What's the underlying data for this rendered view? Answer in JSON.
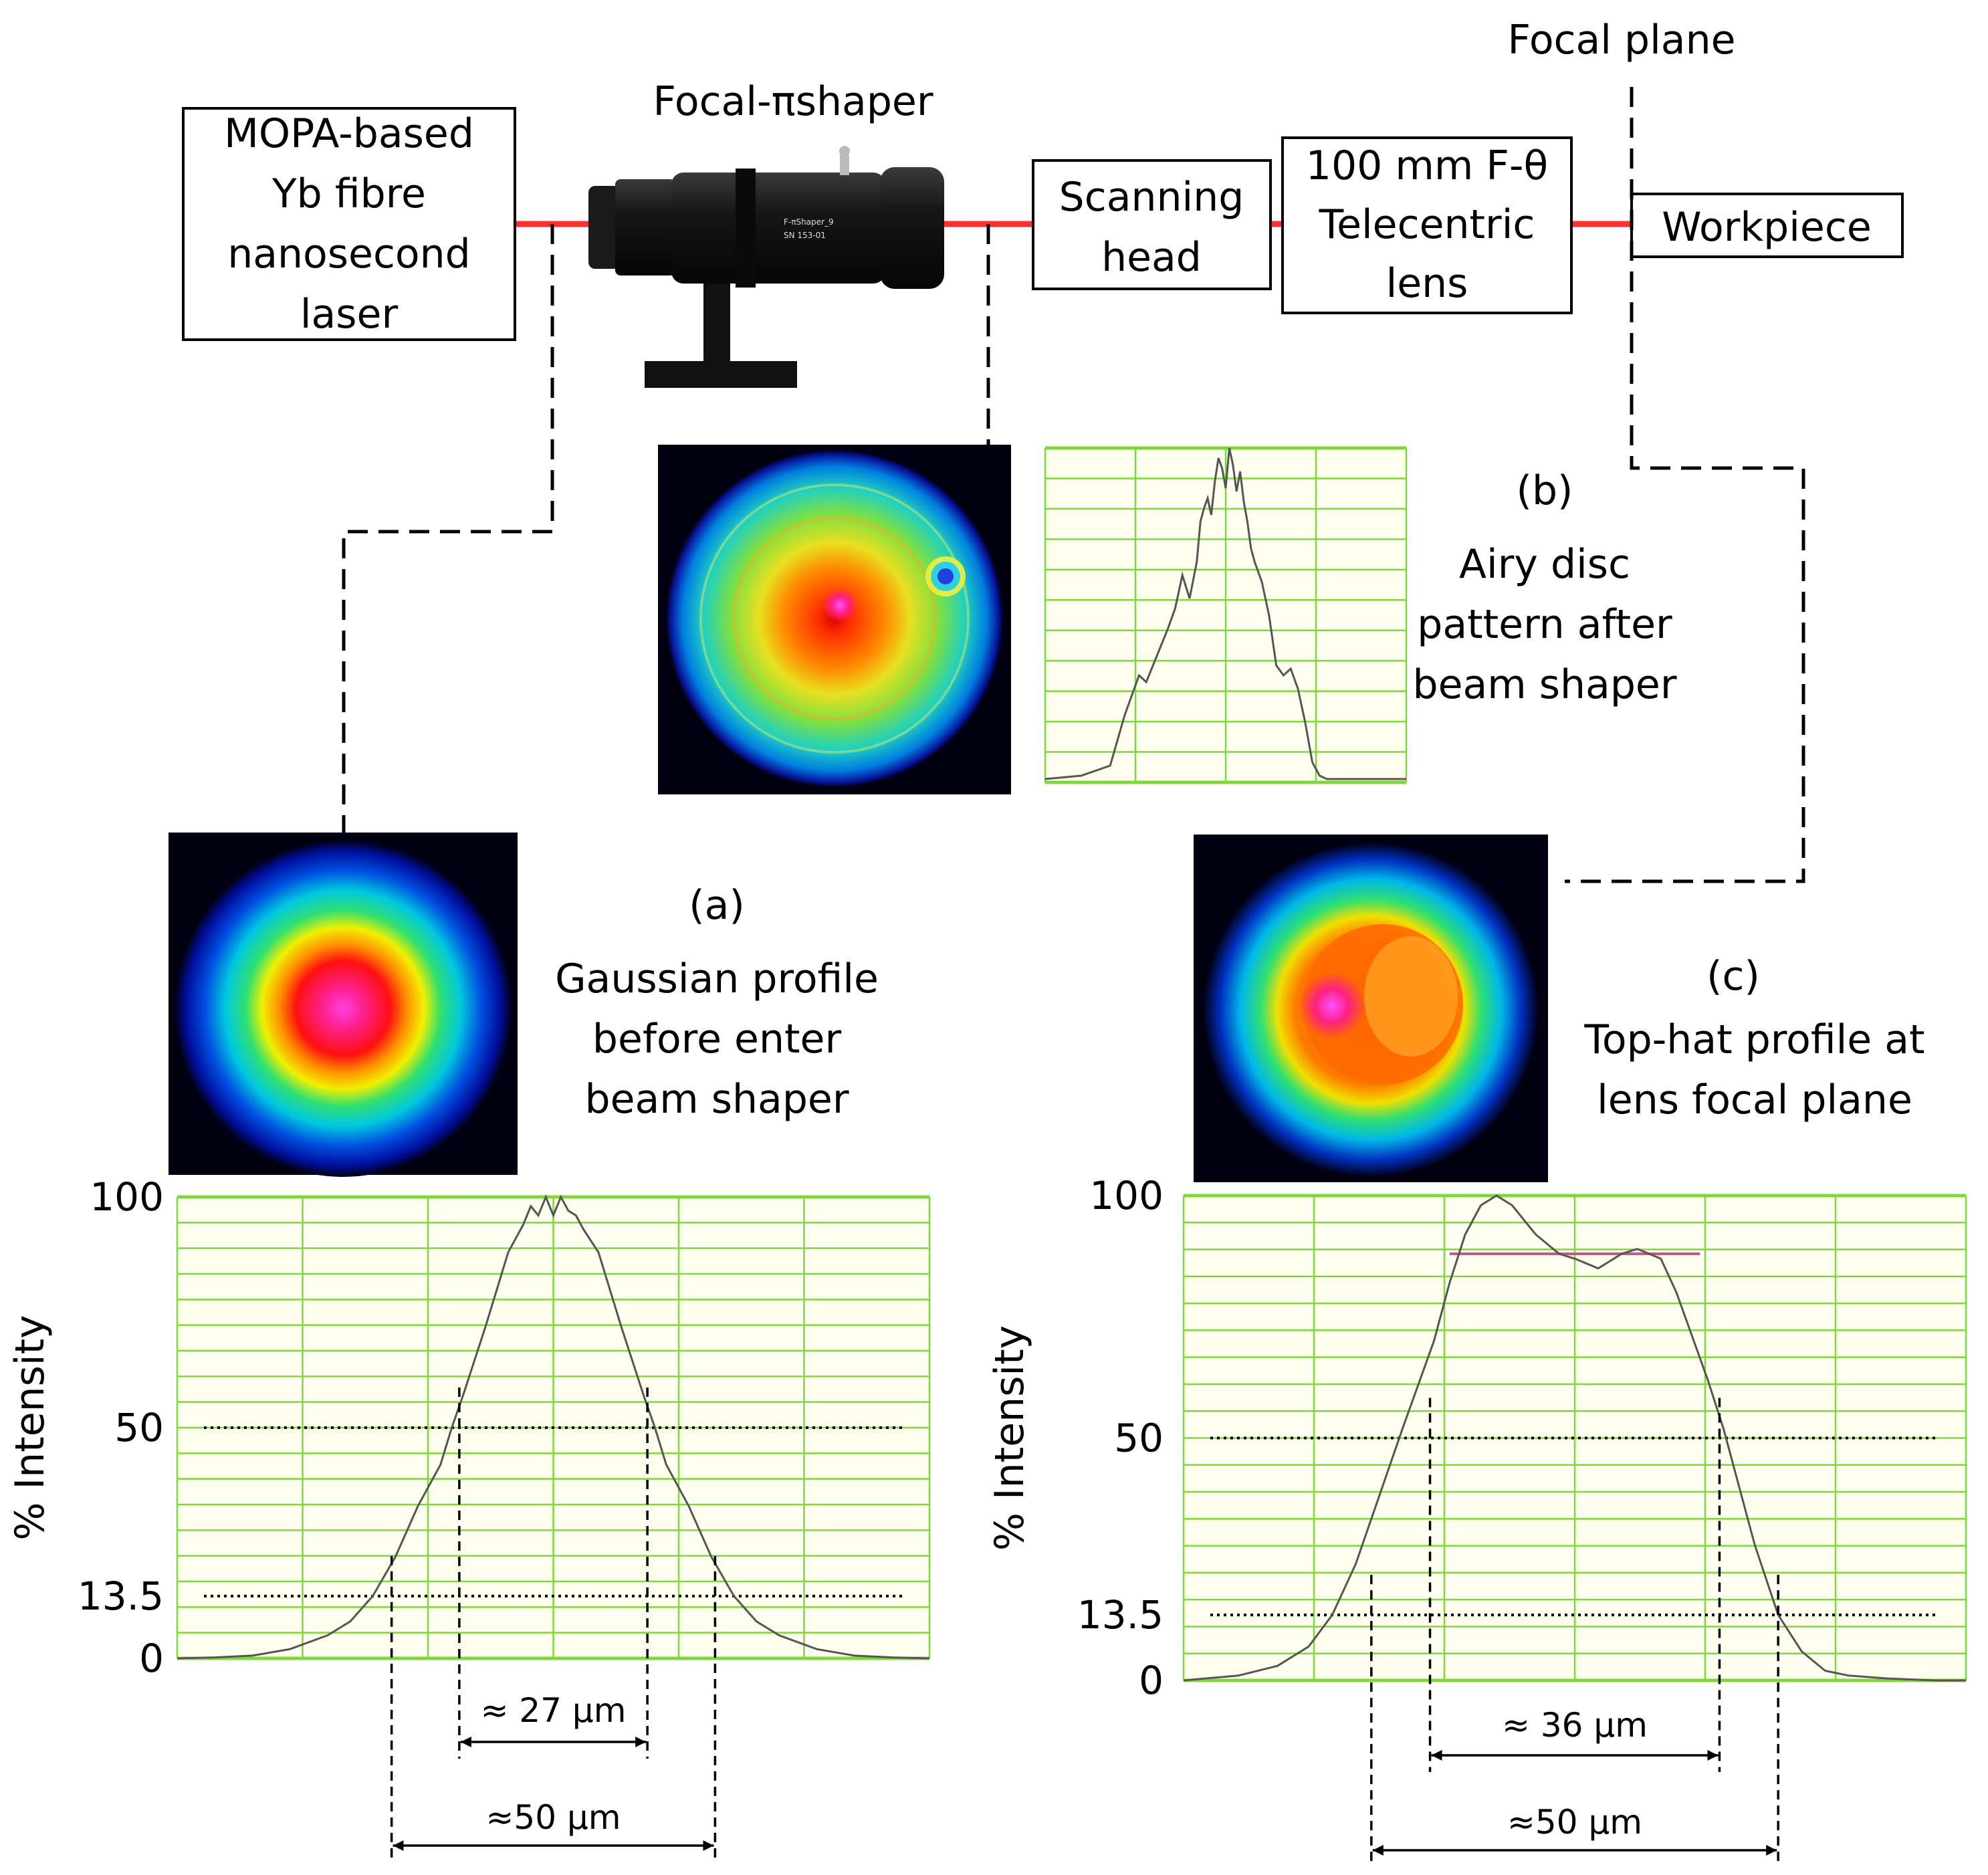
{
  "components": {
    "laser": [
      "MOPA-based",
      "Yb fibre",
      "nanosecond",
      "laser"
    ],
    "shaper_label": "Focal-πshaper",
    "shaper_body_text": [
      "F-πShaper_9",
      "SN 153-01"
    ],
    "scanning_head": [
      "Scanning",
      "head"
    ],
    "lens": [
      "100 mm F-θ",
      "Telecentric",
      "lens"
    ],
    "workpiece": "Workpiece",
    "focal_plane": "Focal plane"
  },
  "panels": {
    "a": {
      "tag": "(a)",
      "caption": [
        "Gaussian profile",
        "before enter",
        "beam shaper"
      ]
    },
    "b": {
      "tag": "(b)",
      "caption": [
        "Airy disc",
        "pattern after",
        "beam shaper"
      ]
    },
    "c": {
      "tag": "(c)",
      "caption": [
        "Top-hat profile at",
        "lens focal plane"
      ]
    }
  },
  "colors": {
    "beam": "#ff3030",
    "grid": "#7fd83a",
    "plot_bg": "#fffff0",
    "curve": "#555555",
    "tophat_marker": "#c8568a"
  },
  "chart_data": [
    {
      "id": "b",
      "type": "line",
      "xlim": [
        0,
        100
      ],
      "ylim": [
        0,
        100
      ],
      "grid": true,
      "series": [
        {
          "x": [
            0,
            10,
            18,
            22,
            26,
            28,
            31,
            34,
            36,
            38,
            40,
            42,
            43,
            44,
            45,
            46,
            47,
            48,
            49,
            50,
            51,
            52,
            53,
            54,
            55,
            56,
            57,
            58,
            60,
            62,
            64,
            66,
            68,
            70,
            72,
            74,
            76,
            78,
            80,
            84,
            90,
            100
          ],
          "y": [
            1,
            2,
            5,
            20,
            32,
            30,
            38,
            46,
            52,
            62,
            55,
            66,
            78,
            82,
            85,
            80,
            90,
            97,
            94,
            88,
            100,
            95,
            87,
            93,
            84,
            78,
            70,
            66,
            60,
            50,
            35,
            32,
            34,
            28,
            18,
            6,
            2,
            1,
            1,
            1,
            1,
            1
          ]
        }
      ]
    },
    {
      "id": "a",
      "type": "line",
      "yticks": [
        "100",
        "50",
        "13.5",
        "0"
      ],
      "ylabel": "% Intensity",
      "xlim": [
        -50,
        50
      ],
      "ylim": [
        0,
        100
      ],
      "grid": true,
      "series": [
        {
          "x": [
            -50,
            -45,
            -40,
            -35,
            -30,
            -27,
            -24,
            -21,
            -18,
            -15,
            -13.5,
            -12,
            -9,
            -6,
            -4,
            -3,
            -2,
            -1,
            0,
            1,
            2,
            3,
            4,
            6,
            9,
            12,
            13.5,
            15,
            18,
            21,
            24,
            27,
            30,
            35,
            40,
            45,
            50
          ],
          "y": [
            0,
            0.2,
            0.6,
            2,
            5,
            8,
            13.5,
            22,
            33,
            42,
            50,
            57,
            72,
            88,
            94,
            98,
            96,
            100,
            96,
            100,
            97,
            96,
            93,
            88,
            72,
            57,
            50,
            42,
            33,
            22,
            13.5,
            8,
            5,
            2,
            0.6,
            0.2,
            0
          ]
        }
      ],
      "reference_lines": [
        50,
        13.5
      ],
      "annotations": [
        {
          "label": "≈ 27 µm",
          "from": -12.5,
          "to": 12.5,
          "level": 50
        },
        {
          "label": "≈50 µm",
          "from": -21.5,
          "to": 21.5,
          "level": 13.5
        }
      ]
    },
    {
      "id": "c",
      "type": "line",
      "yticks": [
        "100",
        "50",
        "13.5",
        "0"
      ],
      "ylabel": "% Intensity",
      "xlim": [
        -50,
        50
      ],
      "ylim": [
        0,
        100
      ],
      "grid": true,
      "series": [
        {
          "x": [
            -50,
            -43,
            -38,
            -34,
            -31,
            -28,
            -25,
            -22,
            -18,
            -16,
            -14,
            -12,
            -10,
            -8,
            -5,
            -2,
            0,
            3,
            6,
            8,
            11,
            13,
            15,
            17,
            19,
            21,
            23,
            26,
            29,
            32,
            35,
            40,
            46,
            50
          ],
          "y": [
            0,
            1,
            3,
            7,
            13.5,
            24,
            38,
            52,
            70,
            82,
            92,
            98,
            100,
            98,
            92,
            88,
            87,
            85,
            88,
            89,
            87,
            80,
            71,
            62,
            52,
            40,
            28,
            13.5,
            6,
            2,
            1,
            0.4,
            0,
            0
          ]
        }
      ],
      "reference_lines": [
        50,
        13.5,
        88
      ],
      "annotations": [
        {
          "label": "≈ 36 µm",
          "from": -18.5,
          "to": 18.5,
          "level": 50
        },
        {
          "label": "≈50 µm",
          "from": -26,
          "to": 26,
          "level": 13.5
        }
      ]
    }
  ]
}
